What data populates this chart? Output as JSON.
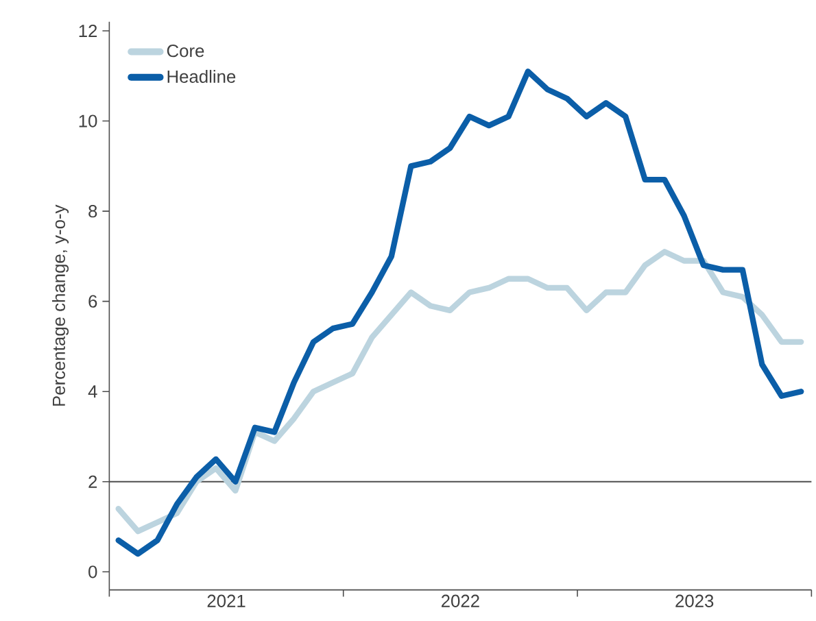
{
  "chart_data": {
    "type": "line",
    "ylabel": "Percentage change, y-o-y",
    "x": [
      "2021-01-15",
      "2021-02-15",
      "2021-03-15",
      "2021-04-15",
      "2021-05-15",
      "2021-06-15",
      "2021-07-15",
      "2021-08-15",
      "2021-09-15",
      "2021-10-15",
      "2021-11-15",
      "2021-12-15",
      "2022-01-15",
      "2022-02-15",
      "2022-03-15",
      "2022-04-15",
      "2022-05-15",
      "2022-06-15",
      "2022-07-15",
      "2022-08-15",
      "2022-09-15",
      "2022-10-15",
      "2022-11-15",
      "2022-12-15",
      "2023-01-15",
      "2023-02-15",
      "2023-03-15",
      "2023-04-15",
      "2023-05-15",
      "2023-06-15",
      "2023-07-15",
      "2023-08-15",
      "2023-09-15",
      "2023-10-15",
      "2023-11-15",
      "2023-12-15"
    ],
    "series": [
      {
        "name": "Core",
        "color": "#bcd4df",
        "values": [
          1.4,
          0.9,
          1.1,
          1.3,
          2.0,
          2.3,
          1.8,
          3.1,
          2.9,
          3.4,
          4.0,
          4.2,
          4.4,
          5.2,
          5.7,
          6.2,
          5.9,
          5.8,
          6.2,
          6.3,
          6.5,
          6.5,
          6.3,
          6.3,
          5.8,
          6.2,
          6.2,
          6.8,
          7.1,
          6.9,
          6.9,
          6.2,
          6.1,
          5.7,
          5.1,
          5.1
        ]
      },
      {
        "name": "Headline",
        "color": "#0b5ea8",
        "values": [
          0.7,
          0.4,
          0.7,
          1.5,
          2.1,
          2.5,
          2.0,
          3.2,
          3.1,
          4.2,
          5.1,
          5.4,
          5.5,
          6.2,
          7.0,
          9.0,
          9.1,
          9.4,
          10.1,
          9.9,
          10.1,
          11.1,
          10.7,
          10.5,
          10.1,
          10.4,
          10.1,
          8.7,
          8.7,
          7.9,
          6.8,
          6.7,
          6.7,
          4.6,
          3.9,
          4.0
        ]
      }
    ],
    "xlim": [
      "2021-01-01",
      "2024-01-01"
    ],
    "xticks": [
      {
        "value": "2021-01-01",
        "label": null
      },
      {
        "value": "2021-07-01",
        "label": "2021"
      },
      {
        "value": "2022-01-01",
        "label": null
      },
      {
        "value": "2022-07-01",
        "label": "2022"
      },
      {
        "value": "2023-01-01",
        "label": null
      },
      {
        "value": "2023-07-01",
        "label": "2023"
      },
      {
        "value": "2024-01-01",
        "label": null
      }
    ],
    "ylim": [
      -0.4,
      12.2
    ],
    "yticks": [
      0,
      2,
      4,
      6,
      8,
      10,
      12
    ],
    "ref_lines": [
      {
        "axis": "y",
        "value": 2,
        "color": "#4d4d4d"
      }
    ],
    "legend": "top left",
    "grid": false,
    "marker": "none",
    "line_style": "solid"
  }
}
